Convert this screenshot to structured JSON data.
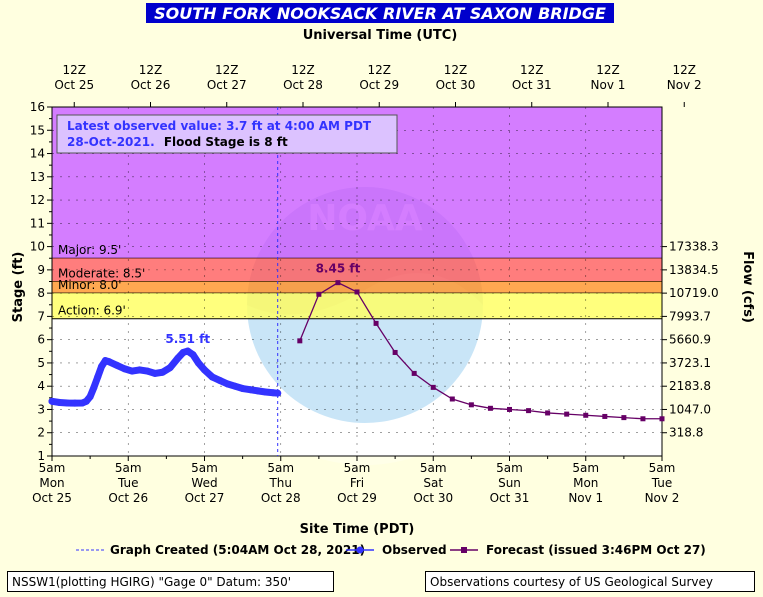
{
  "title": "SOUTH FORK NOOKSACK RIVER AT SAXON BRIDGE",
  "top_axis_label": "Universal Time (UTC)",
  "bottom_axis_label": "Site Time (PDT)",
  "left_axis_label": "Stage (ft)",
  "right_axis_label": "Flow (cfs)",
  "info_box": {
    "line1": "Latest observed value: 3.7 ft at 4:00 AM PDT",
    "line2_date": "28-Oct-2021.",
    "line2_flood": "Flood Stage is 8 ft"
  },
  "legend": {
    "graph_created": "Graph Created (5:04AM Oct 28, 2021)",
    "observed": "Observed",
    "forecast": "Forecast (issued 3:46PM Oct 27)"
  },
  "footer": {
    "left": "NSSW1(plotting HGIRG) \"Gage 0\" Datum: 350'",
    "right": "Observations courtesy of US Geological Survey"
  },
  "colors": {
    "major": "#cc66ff",
    "moderate": "#ff6666",
    "minor": "#ff9933",
    "action": "#ffff66",
    "observed": "#3333ff",
    "forecast": "#660066",
    "title_bg": "#0000cc"
  },
  "chart_data": {
    "type": "line",
    "x_unit_days_since": "Oct 25 5am PDT",
    "ylim": [
      1,
      16
    ],
    "y_ticks": [
      1,
      2,
      3,
      4,
      5,
      6,
      7,
      8,
      9,
      10,
      11,
      12,
      13,
      14,
      15,
      16
    ],
    "top_ticks": [
      {
        "line1": "12Z",
        "line2": "Oct 25"
      },
      {
        "line1": "12Z",
        "line2": "Oct 26"
      },
      {
        "line1": "12Z",
        "line2": "Oct 27"
      },
      {
        "line1": "12Z",
        "line2": "Oct 28"
      },
      {
        "line1": "12Z",
        "line2": "Oct 29"
      },
      {
        "line1": "12Z",
        "line2": "Oct 30"
      },
      {
        "line1": "12Z",
        "line2": "Oct 31"
      },
      {
        "line1": "12Z",
        "line2": "Nov 1"
      },
      {
        "line1": "12Z",
        "line2": "Nov 2"
      }
    ],
    "bottom_ticks": [
      {
        "time": "5am",
        "day": "Mon",
        "date": "Oct 25"
      },
      {
        "time": "5am",
        "day": "Tue",
        "date": "Oct 26"
      },
      {
        "time": "5am",
        "day": "Wed",
        "date": "Oct 27"
      },
      {
        "time": "5am",
        "day": "Thu",
        "date": "Oct 28"
      },
      {
        "time": "5am",
        "day": "Fri",
        "date": "Oct 29"
      },
      {
        "time": "5am",
        "day": "Sat",
        "date": "Oct 30"
      },
      {
        "time": "5am",
        "day": "Sun",
        "date": "Oct 31"
      },
      {
        "time": "5am",
        "day": "Mon",
        "date": "Nov 1"
      },
      {
        "time": "5am",
        "day": "Tue",
        "date": "Nov 2"
      }
    ],
    "flood_categories": [
      {
        "name": "Major",
        "label": "Major: 9.5'",
        "from": 9.5,
        "to": 16
      },
      {
        "name": "Moderate",
        "label": "Moderate: 8.5'",
        "from": 8.5,
        "to": 9.5
      },
      {
        "name": "Minor",
        "label": "Minor: 8.0'",
        "from": 8.0,
        "to": 8.5
      },
      {
        "name": "Action",
        "label": "Action: 6.9'",
        "from": 6.9,
        "to": 8.0
      }
    ],
    "flow_ticks": [
      {
        "stage": 10,
        "label": "17338.3"
      },
      {
        "stage": 9,
        "label": "13834.5"
      },
      {
        "stage": 8,
        "label": "10719.0"
      },
      {
        "stage": 7,
        "label": "7993.7"
      },
      {
        "stage": 6,
        "label": "5660.9"
      },
      {
        "stage": 5,
        "label": "3723.1"
      },
      {
        "stage": 4,
        "label": "2183.8"
      },
      {
        "stage": 3,
        "label": "1047.0"
      },
      {
        "stage": 2,
        "label": "318.8"
      }
    ],
    "graph_created_x": 2.96,
    "observed": {
      "name": "Observed",
      "peak_label": "5.51 ft",
      "peak_x": 1.78,
      "peak_y": 5.51,
      "points": [
        [
          0.0,
          3.35
        ],
        [
          0.1,
          3.3
        ],
        [
          0.2,
          3.28
        ],
        [
          0.3,
          3.27
        ],
        [
          0.4,
          3.28
        ],
        [
          0.45,
          3.35
        ],
        [
          0.5,
          3.55
        ],
        [
          0.55,
          3.95
        ],
        [
          0.6,
          4.4
        ],
        [
          0.65,
          4.85
        ],
        [
          0.7,
          5.1
        ],
        [
          0.75,
          5.05
        ],
        [
          0.85,
          4.9
        ],
        [
          0.95,
          4.75
        ],
        [
          1.05,
          4.65
        ],
        [
          1.15,
          4.7
        ],
        [
          1.25,
          4.65
        ],
        [
          1.35,
          4.55
        ],
        [
          1.45,
          4.6
        ],
        [
          1.55,
          4.8
        ],
        [
          1.65,
          5.2
        ],
        [
          1.72,
          5.45
        ],
        [
          1.78,
          5.51
        ],
        [
          1.85,
          5.35
        ],
        [
          1.92,
          5.0
        ],
        [
          2.0,
          4.7
        ],
        [
          2.1,
          4.4
        ],
        [
          2.2,
          4.25
        ],
        [
          2.3,
          4.1
        ],
        [
          2.4,
          4.0
        ],
        [
          2.5,
          3.9
        ],
        [
          2.6,
          3.85
        ],
        [
          2.7,
          3.8
        ],
        [
          2.8,
          3.75
        ],
        [
          2.9,
          3.72
        ],
        [
          2.96,
          3.7
        ]
      ]
    },
    "forecast": {
      "name": "Forecast",
      "peak_label": "8.45 ft",
      "peak_x": 3.75,
      "peak_y": 8.45,
      "points": [
        [
          3.25,
          5.95
        ],
        [
          3.5,
          7.95
        ],
        [
          3.75,
          8.45
        ],
        [
          4.0,
          8.05
        ],
        [
          4.25,
          6.7
        ],
        [
          4.5,
          5.45
        ],
        [
          4.75,
          4.55
        ],
        [
          5.0,
          3.95
        ],
        [
          5.25,
          3.45
        ],
        [
          5.5,
          3.2
        ],
        [
          5.75,
          3.05
        ],
        [
          6.0,
          3.0
        ],
        [
          6.25,
          2.95
        ],
        [
          6.5,
          2.85
        ],
        [
          6.75,
          2.8
        ],
        [
          7.0,
          2.75
        ],
        [
          7.25,
          2.7
        ],
        [
          7.5,
          2.65
        ],
        [
          7.75,
          2.6
        ],
        [
          8.0,
          2.6
        ]
      ]
    }
  }
}
